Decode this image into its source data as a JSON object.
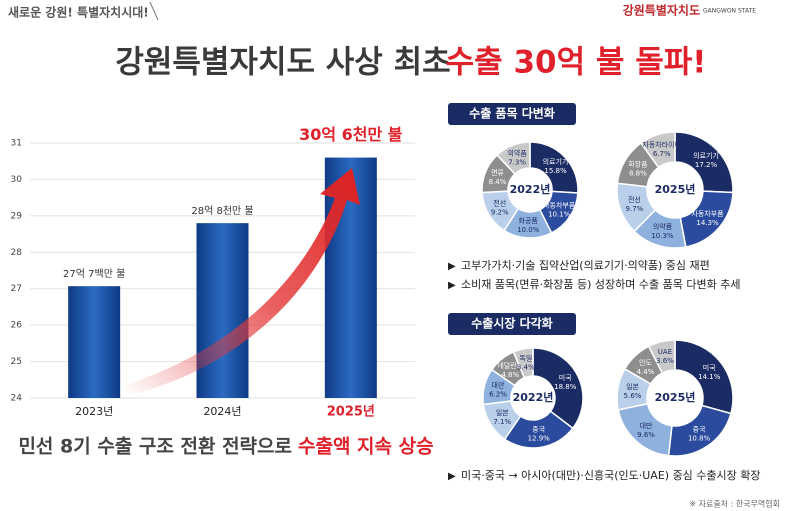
{
  "header": {
    "tag": "새로운 강원! 특별자치시대!",
    "logo": "강원특별자치도",
    "logo_sub": "GANGWON STATE",
    "title_a": "강원특별자치도 사상 최초",
    "title_b": "수출 30억 불 돌파!"
  },
  "sections": [
    {
      "heading": "수출 품목 다변화",
      "bullets": [
        "고부가가치·기술 집약산업(의료기기·의약품) 중심 재편",
        "소비재 품목(면류·화장품 등) 성장하며 수출 품목 다변화 추세"
      ]
    },
    {
      "heading": "수출시장 다각화",
      "bullets": [
        "미국·중국 → 아시아(대만)·신흥국(인도·UAE) 중심 수출시장 확장"
      ]
    }
  ],
  "caption_a": "민선 8기 수출 구조 전환 전략으로",
  "caption_b": "수출액 지속 상승",
  "source": "※ 자료출처 : 한국무역협회",
  "chart_data": [
    {
      "type": "bar",
      "categories": [
        "2023년",
        "2024년",
        "2025년"
      ],
      "values": [
        27.07,
        28.8,
        30.6
      ],
      "value_labels": [
        "27억 7백만 불",
        "28억 8천만 불",
        "30억 6천만 불"
      ],
      "color": "#1f56a8",
      "ylim": [
        24,
        31
      ],
      "yticks": [
        24,
        25,
        26,
        27,
        28,
        29,
        30,
        31
      ],
      "grid": true
    },
    {
      "type": "donut",
      "title": "2022년",
      "categories": [
        "의료기기",
        "자동차부품",
        "화공품",
        "전선",
        "면류",
        "의약품"
      ],
      "values": [
        15.8,
        10.1,
        10.0,
        9.2,
        8.4,
        7.3
      ],
      "value_labels": [
        "15.8%",
        "10.1%",
        "10.0%",
        "9.2%",
        "8.4%",
        "7.3%"
      ],
      "colors": [
        "#1b2b63",
        "#2b4b9e",
        "#8fb1de",
        "#b9cfea",
        "#8e8e8e",
        "#c9c9c9"
      ]
    },
    {
      "type": "donut",
      "title": "2025년",
      "categories": [
        "의료기기",
        "자동차부품",
        "의약품",
        "전선",
        "화장품",
        "자동차타이어"
      ],
      "values": [
        17.2,
        14.3,
        10.3,
        9.7,
        8.8,
        6.7
      ],
      "value_labels": [
        "17.2%",
        "14.3%",
        "10.3%",
        "9.7%",
        "8.8%",
        "6.7%"
      ],
      "colors": [
        "#1b2b63",
        "#2b4b9e",
        "#8fb1de",
        "#b9cfea",
        "#8e8e8e",
        "#c9c9c9"
      ]
    },
    {
      "type": "donut",
      "title": "2022년",
      "categories": [
        "미국",
        "중국",
        "일본",
        "대만",
        "네덜란드",
        "독일"
      ],
      "values": [
        18.8,
        12.9,
        7.1,
        6.2,
        4.8,
        3.4
      ],
      "value_labels": [
        "18.8%",
        "12.9%",
        "7.1%",
        "6.2%",
        "4.8%",
        "3.4%"
      ],
      "colors": [
        "#1b2b63",
        "#2b4b9e",
        "#b9cfea",
        "#8fb1de",
        "#8e8e8e",
        "#c9c9c9"
      ]
    },
    {
      "type": "donut",
      "title": "2025년",
      "categories": [
        "미국",
        "중국",
        "대만",
        "일본",
        "인도",
        "UAE"
      ],
      "values": [
        14.1,
        10.8,
        9.6,
        5.6,
        4.4,
        3.6
      ],
      "value_labels": [
        "14.1%",
        "10.8%",
        "9.6%",
        "5.6%",
        "4.4%",
        "3.6%"
      ],
      "colors": [
        "#1b2b63",
        "#2b4b9e",
        "#8fb1de",
        "#b9cfea",
        "#8e8e8e",
        "#c9c9c9"
      ]
    }
  ]
}
